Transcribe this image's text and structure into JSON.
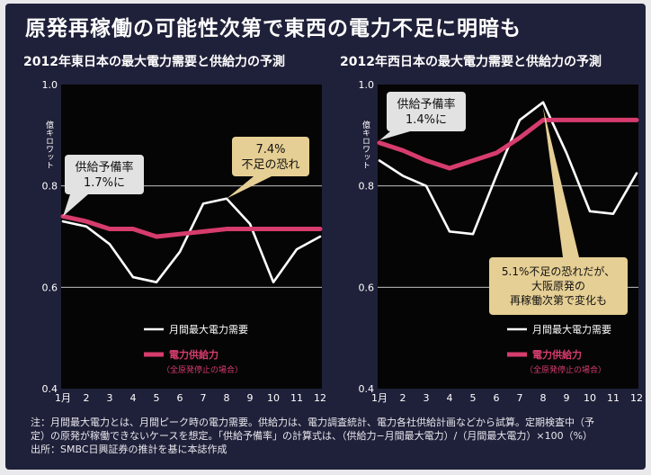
{
  "title": "原発再稼働の可能性次第で東西の電力不足に明暗も",
  "colors": {
    "background": "#1f2039",
    "plot_area": "#050505",
    "demand_line": "#ffffff",
    "supply_line": "#d63c6d",
    "callout": "#e6cf94",
    "callout_dark": "#e2e2e2",
    "grid": "#dcdcdc"
  },
  "chart_data": [
    {
      "type": "line",
      "title": "2012年東日本の最大電力需要と供給力の予測",
      "y_unit_label": "億キロワット",
      "ylim": [
        0.4,
        1.0
      ],
      "yticks": [
        "0.4",
        "0.6",
        "0.8",
        "1.0"
      ],
      "grid": true,
      "legend_position": "bottom-right",
      "categories": [
        "1月",
        "2",
        "3",
        "4",
        "5",
        "6",
        "7",
        "8",
        "9",
        "10",
        "11",
        "12"
      ],
      "series": [
        {
          "name": "月間最大電力需要",
          "color": "#ffffff",
          "values": [
            0.73,
            0.72,
            0.685,
            0.62,
            0.61,
            0.67,
            0.765,
            0.775,
            0.725,
            0.61,
            0.675,
            0.7
          ]
        },
        {
          "name": "電力供給力",
          "sub": "（全原発停止の場合）",
          "color": "#d63c6d",
          "values": [
            0.74,
            0.73,
            0.715,
            0.715,
            0.7,
            0.705,
            0.71,
            0.715,
            0.715,
            0.715,
            0.715,
            0.715
          ]
        }
      ],
      "annotations": [
        {
          "style": "gray",
          "lines": [
            "供給予備率",
            "1.7%に"
          ]
        },
        {
          "style": "tan",
          "lines": [
            "7.4%",
            "不足の恐れ"
          ]
        }
      ]
    },
    {
      "type": "line",
      "title": "2012年西日本の最大電力需要と供給力の予測",
      "y_unit_label": "億キロワット",
      "ylim": [
        0.4,
        1.0
      ],
      "yticks": [
        "0.4",
        "0.6",
        "0.8",
        "1.0"
      ],
      "grid": true,
      "legend_position": "bottom-right",
      "categories": [
        "1月",
        "2",
        "3",
        "4",
        "5",
        "6",
        "7",
        "8",
        "9",
        "10",
        "11",
        "12"
      ],
      "series": [
        {
          "name": "月間最大電力需要",
          "color": "#ffffff",
          "values": [
            0.85,
            0.82,
            0.8,
            0.71,
            0.705,
            0.82,
            0.93,
            0.965,
            0.865,
            0.75,
            0.745,
            0.825
          ]
        },
        {
          "name": "電力供給力",
          "sub": "（全原発停止の場合）",
          "color": "#d63c6d",
          "values": [
            0.885,
            0.87,
            0.85,
            0.835,
            0.85,
            0.865,
            0.895,
            0.93,
            0.93,
            0.93,
            0.93,
            0.93
          ]
        }
      ],
      "annotations": [
        {
          "style": "gray",
          "lines": [
            "供給予備率",
            "1.4%に"
          ]
        },
        {
          "style": "tan",
          "lines": [
            "5.1%不足の恐れだが、",
            "大阪原発の",
            "再稼働次第で変化も"
          ]
        }
      ]
    }
  ],
  "footnote": [
    "注：月間最大電力とは、月間ピーク時の電力需要。供給力は、電力調査統計、電力各社供給計画などから試算。定期検査中（予",
    "定）の原発が稼働できないケースを想定。「供給予備率」の計算式は、（供給力−月間最大電力）/（月間最大電力）×100（%）",
    "出所：SMBC日興証券の推計を基に本誌作成"
  ]
}
